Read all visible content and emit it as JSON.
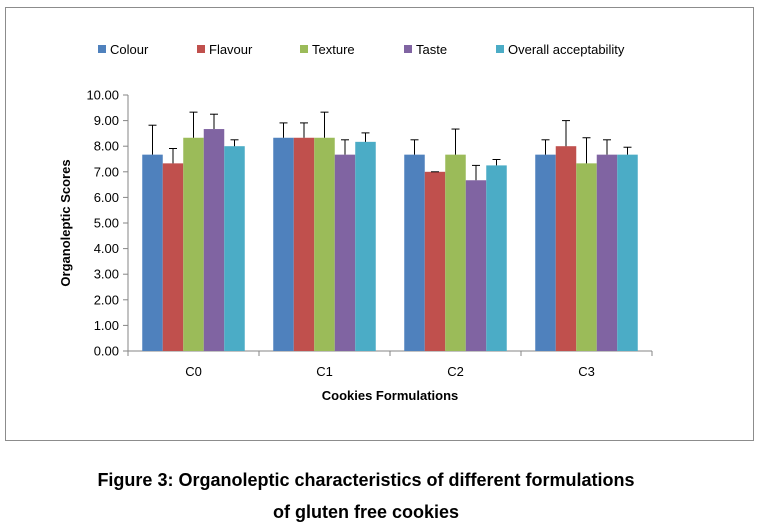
{
  "chart_data": {
    "type": "bar",
    "xlabel": "Cookies Formulations",
    "ylabel": "Organoleptic Scores",
    "ylim": [
      0,
      10
    ],
    "ytick_step": 1,
    "ytick_labels": [
      "0.00",
      "1.00",
      "2.00",
      "3.00",
      "4.00",
      "5.00",
      "6.00",
      "7.00",
      "8.00",
      "9.00",
      "10.00"
    ],
    "categories": [
      "C0",
      "C1",
      "C2",
      "C3"
    ],
    "legend_position": "top",
    "grid": false,
    "series": [
      {
        "name": "Colour",
        "color": "#4f81bd",
        "values": [
          7.67,
          8.33,
          7.67,
          7.67
        ],
        "errors": [
          1.15,
          0.58,
          0.58,
          0.58
        ]
      },
      {
        "name": "Flavour",
        "color": "#c0504d",
        "values": [
          7.33,
          8.33,
          7.0,
          8.0
        ],
        "errors": [
          0.58,
          0.58,
          0.0,
          1.0
        ]
      },
      {
        "name": "Texture",
        "color": "#9bbb59",
        "values": [
          8.33,
          8.33,
          7.67,
          7.33
        ],
        "errors": [
          1.0,
          1.0,
          1.0,
          1.0
        ]
      },
      {
        "name": "Taste",
        "color": "#8064a2",
        "values": [
          8.67,
          7.67,
          6.67,
          7.67
        ],
        "errors": [
          0.58,
          0.58,
          0.58,
          0.58
        ]
      },
      {
        "name": "Overall acceptability",
        "color": "#4bacc6",
        "values": [
          8.0,
          8.17,
          7.25,
          7.67
        ],
        "errors": [
          0.25,
          0.35,
          0.23,
          0.29
        ]
      }
    ]
  },
  "caption": {
    "line1": "Figure 3: Organoleptic characteristics of different formulations",
    "line2": "of gluten free cookies"
  }
}
